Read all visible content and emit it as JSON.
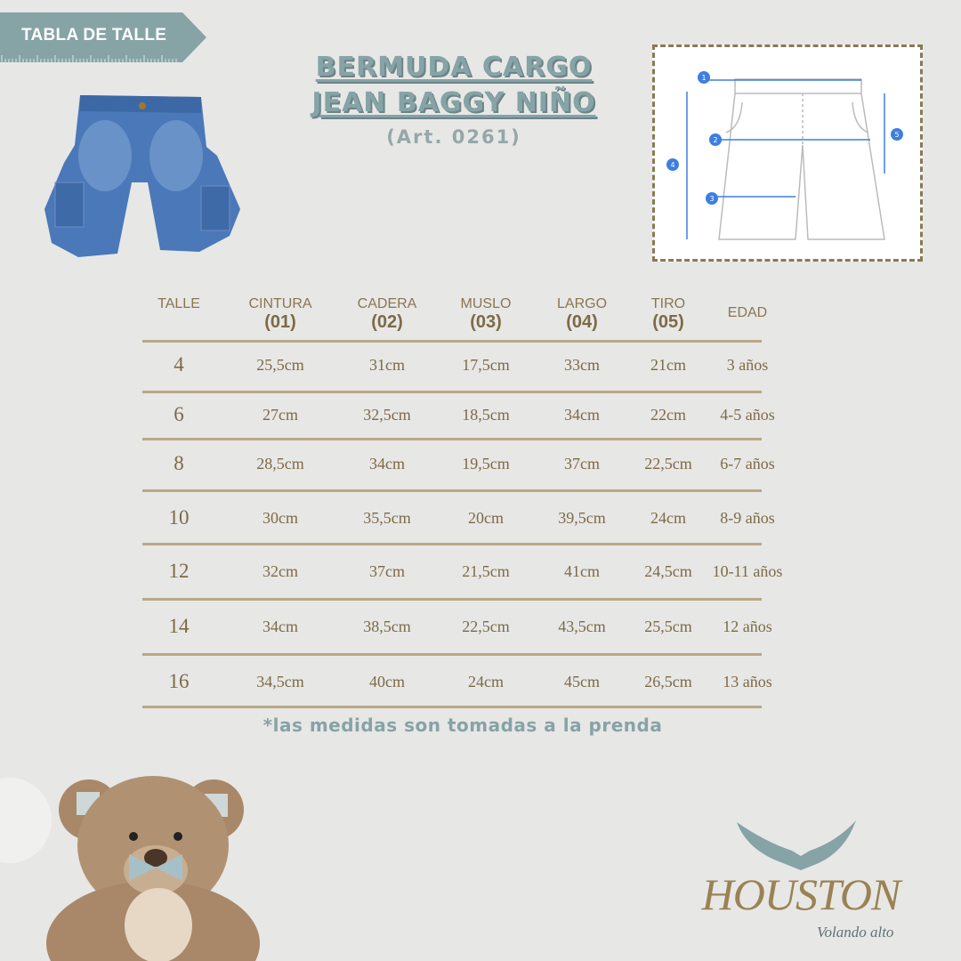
{
  "badge": {
    "label": "TABLA DE TALLE"
  },
  "title": {
    "line1": "BERMUDA CARGO",
    "line2": "JEAN BAGGY NIÑO",
    "article": "(Art. 0261)"
  },
  "diagram": {
    "markers": [
      "1",
      "2",
      "3",
      "4",
      "5"
    ]
  },
  "table": {
    "headers": [
      {
        "label": "TALLE",
        "code": ""
      },
      {
        "label": "CINTURA",
        "code": "(01)"
      },
      {
        "label": "CADERA",
        "code": "(02)"
      },
      {
        "label": "MUSLO",
        "code": "(03)"
      },
      {
        "label": "LARGO",
        "code": "(04)"
      },
      {
        "label": "TIRO",
        "code": "(05)"
      },
      {
        "label": "EDAD",
        "code": ""
      }
    ],
    "rows": [
      [
        "4",
        "25,5cm",
        "31cm",
        "17,5cm",
        "33cm",
        "21cm",
        "3 años"
      ],
      [
        "6",
        "27cm",
        "32,5cm",
        "18,5cm",
        "34cm",
        "22cm",
        "4-5 años"
      ],
      [
        "8",
        "28,5cm",
        "34cm",
        "19,5cm",
        "37cm",
        "22,5cm",
        "6-7 años"
      ],
      [
        "10",
        "30cm",
        "35,5cm",
        "20cm",
        "39,5cm",
        "24cm",
        "8-9 años"
      ],
      [
        "12",
        "32cm",
        "37cm",
        "21,5cm",
        "41cm",
        "24,5cm",
        "10-11 años"
      ],
      [
        "14",
        "34cm",
        "38,5cm",
        "22,5cm",
        "43,5cm",
        "25,5cm",
        "12 años"
      ],
      [
        "16",
        "34,5cm",
        "40cm",
        "24cm",
        "45cm",
        "26,5cm",
        "13 años"
      ]
    ]
  },
  "note": "*las medidas son tomadas a la prenda",
  "logo": {
    "name": "HOUSTON",
    "tagline": "Volando alto"
  },
  "colors": {
    "accent": "#86a3a6",
    "text": "#7d6a45",
    "rule": "#b9a786",
    "background": "#e7e7e6"
  }
}
